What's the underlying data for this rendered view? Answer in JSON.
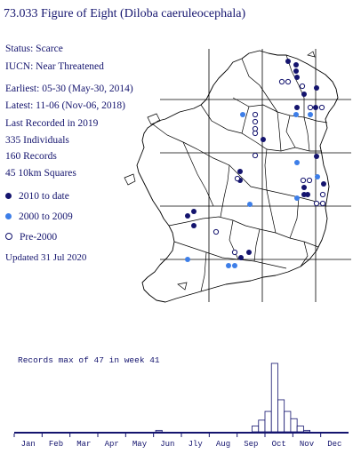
{
  "title": "73.033 Figure of Eight (Diloba caeruleocephala)",
  "info": {
    "status": "Status: Scarce",
    "iucn": "IUCN: Near Threatened",
    "earliest": "Earliest: 05-30 (May-30, 2014)",
    "latest": "Latest: 11-06 (Nov-06, 2018)",
    "last_recorded": "Last Recorded in 2019",
    "individuals": "335 Individuals",
    "records": "160 Records",
    "squares": "45 10km Squares"
  },
  "legend": {
    "items": [
      {
        "label": "2010 to date",
        "color": "#14146e",
        "style": "filled"
      },
      {
        "label": "2000 to 2009",
        "color": "#3d7ee8",
        "style": "filled"
      },
      {
        "label": "Pre-2000",
        "color": "#14146e",
        "style": "hollow"
      }
    ]
  },
  "updated": "Updated 31 Jul 2020",
  "colors": {
    "text": "#14146e",
    "recent": "#14146e",
    "mid": "#3d7ee8",
    "old": "#14146e",
    "map_lines": "#000000"
  },
  "chart_data": {
    "type": "bar",
    "title": "Records max of 47 in week 41",
    "months": [
      "Jan",
      "Feb",
      "Mar",
      "Apr",
      "May",
      "Jun",
      "Jly",
      "Aug",
      "Sep",
      "Oct",
      "Nov",
      "Dec"
    ],
    "weeks": [
      1,
      2,
      3,
      4,
      5,
      6,
      7,
      8,
      9,
      10,
      11,
      12,
      13,
      14,
      15,
      16,
      17,
      18,
      19,
      20,
      21,
      22,
      23,
      24,
      25,
      26,
      27,
      28,
      29,
      30,
      31,
      32,
      33,
      34,
      35,
      36,
      37,
      38,
      39,
      40,
      41,
      42,
      43,
      44,
      45,
      46,
      47,
      48,
      49,
      50,
      51,
      52
    ],
    "values": [
      0,
      0,
      0,
      0,
      0,
      0,
      0,
      0,
      0,
      0,
      0,
      0,
      0,
      0,
      0,
      0,
      0,
      0,
      0,
      0,
      0,
      0,
      1,
      0,
      0,
      0,
      0,
      0,
      0,
      0,
      0,
      0,
      0,
      0,
      0,
      0,
      0,
      4,
      8,
      14,
      47,
      22,
      14,
      9,
      4,
      1,
      0,
      0,
      0,
      0,
      0,
      0
    ],
    "ymax": 47
  }
}
